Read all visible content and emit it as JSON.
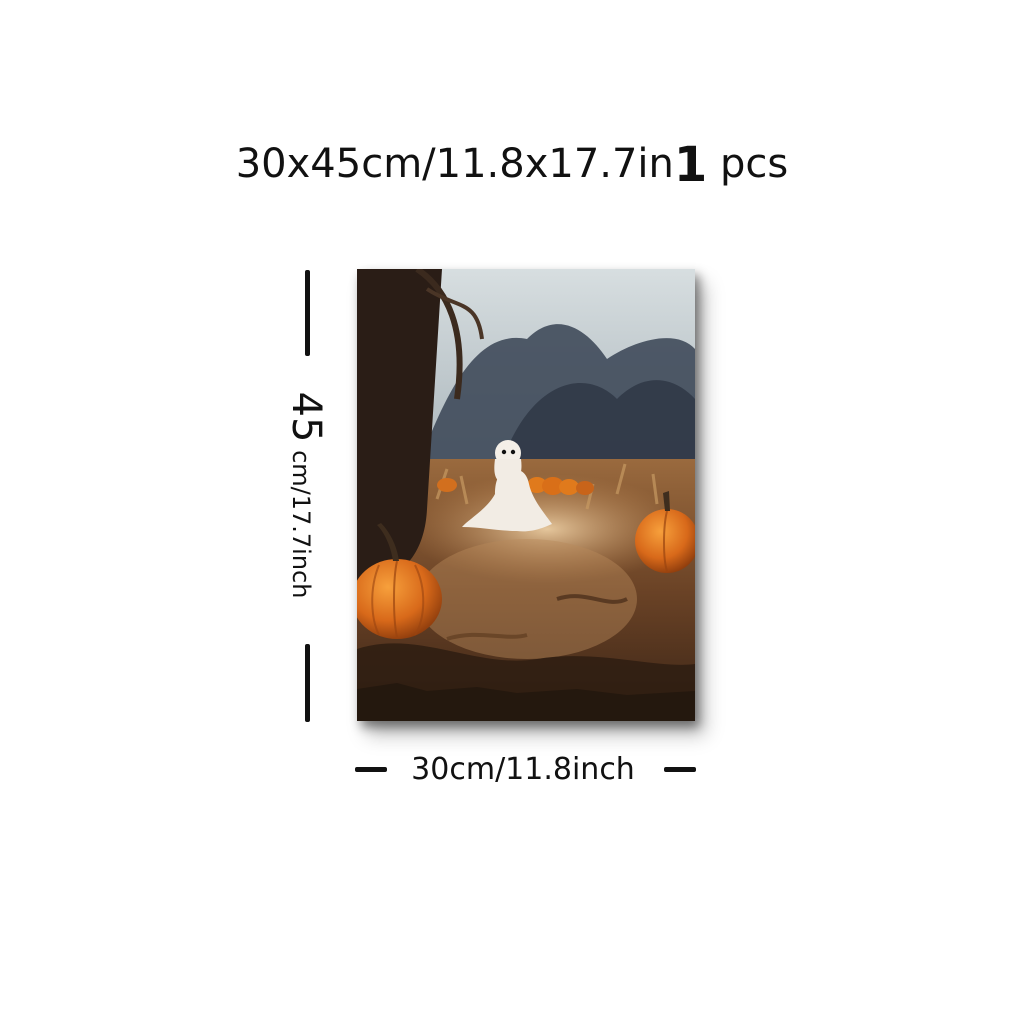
{
  "title": {
    "size_text": "30x45cm/11.8x17.7in",
    "qty_number": "1",
    "qty_unit": "pcs"
  },
  "dimensions": {
    "height_number": "45",
    "height_unit": "cm/17.7inch",
    "width_label": "30cm/11.8inch"
  },
  "artwork": {
    "subject": "ghost-in-pumpkin-field-painting",
    "colors": {
      "sky": "#c9d2d6",
      "trees": "#3c4656",
      "ground": "#7a4e2c",
      "pumpkin": "#e07a1c",
      "ghost": "#f2ece4"
    }
  }
}
